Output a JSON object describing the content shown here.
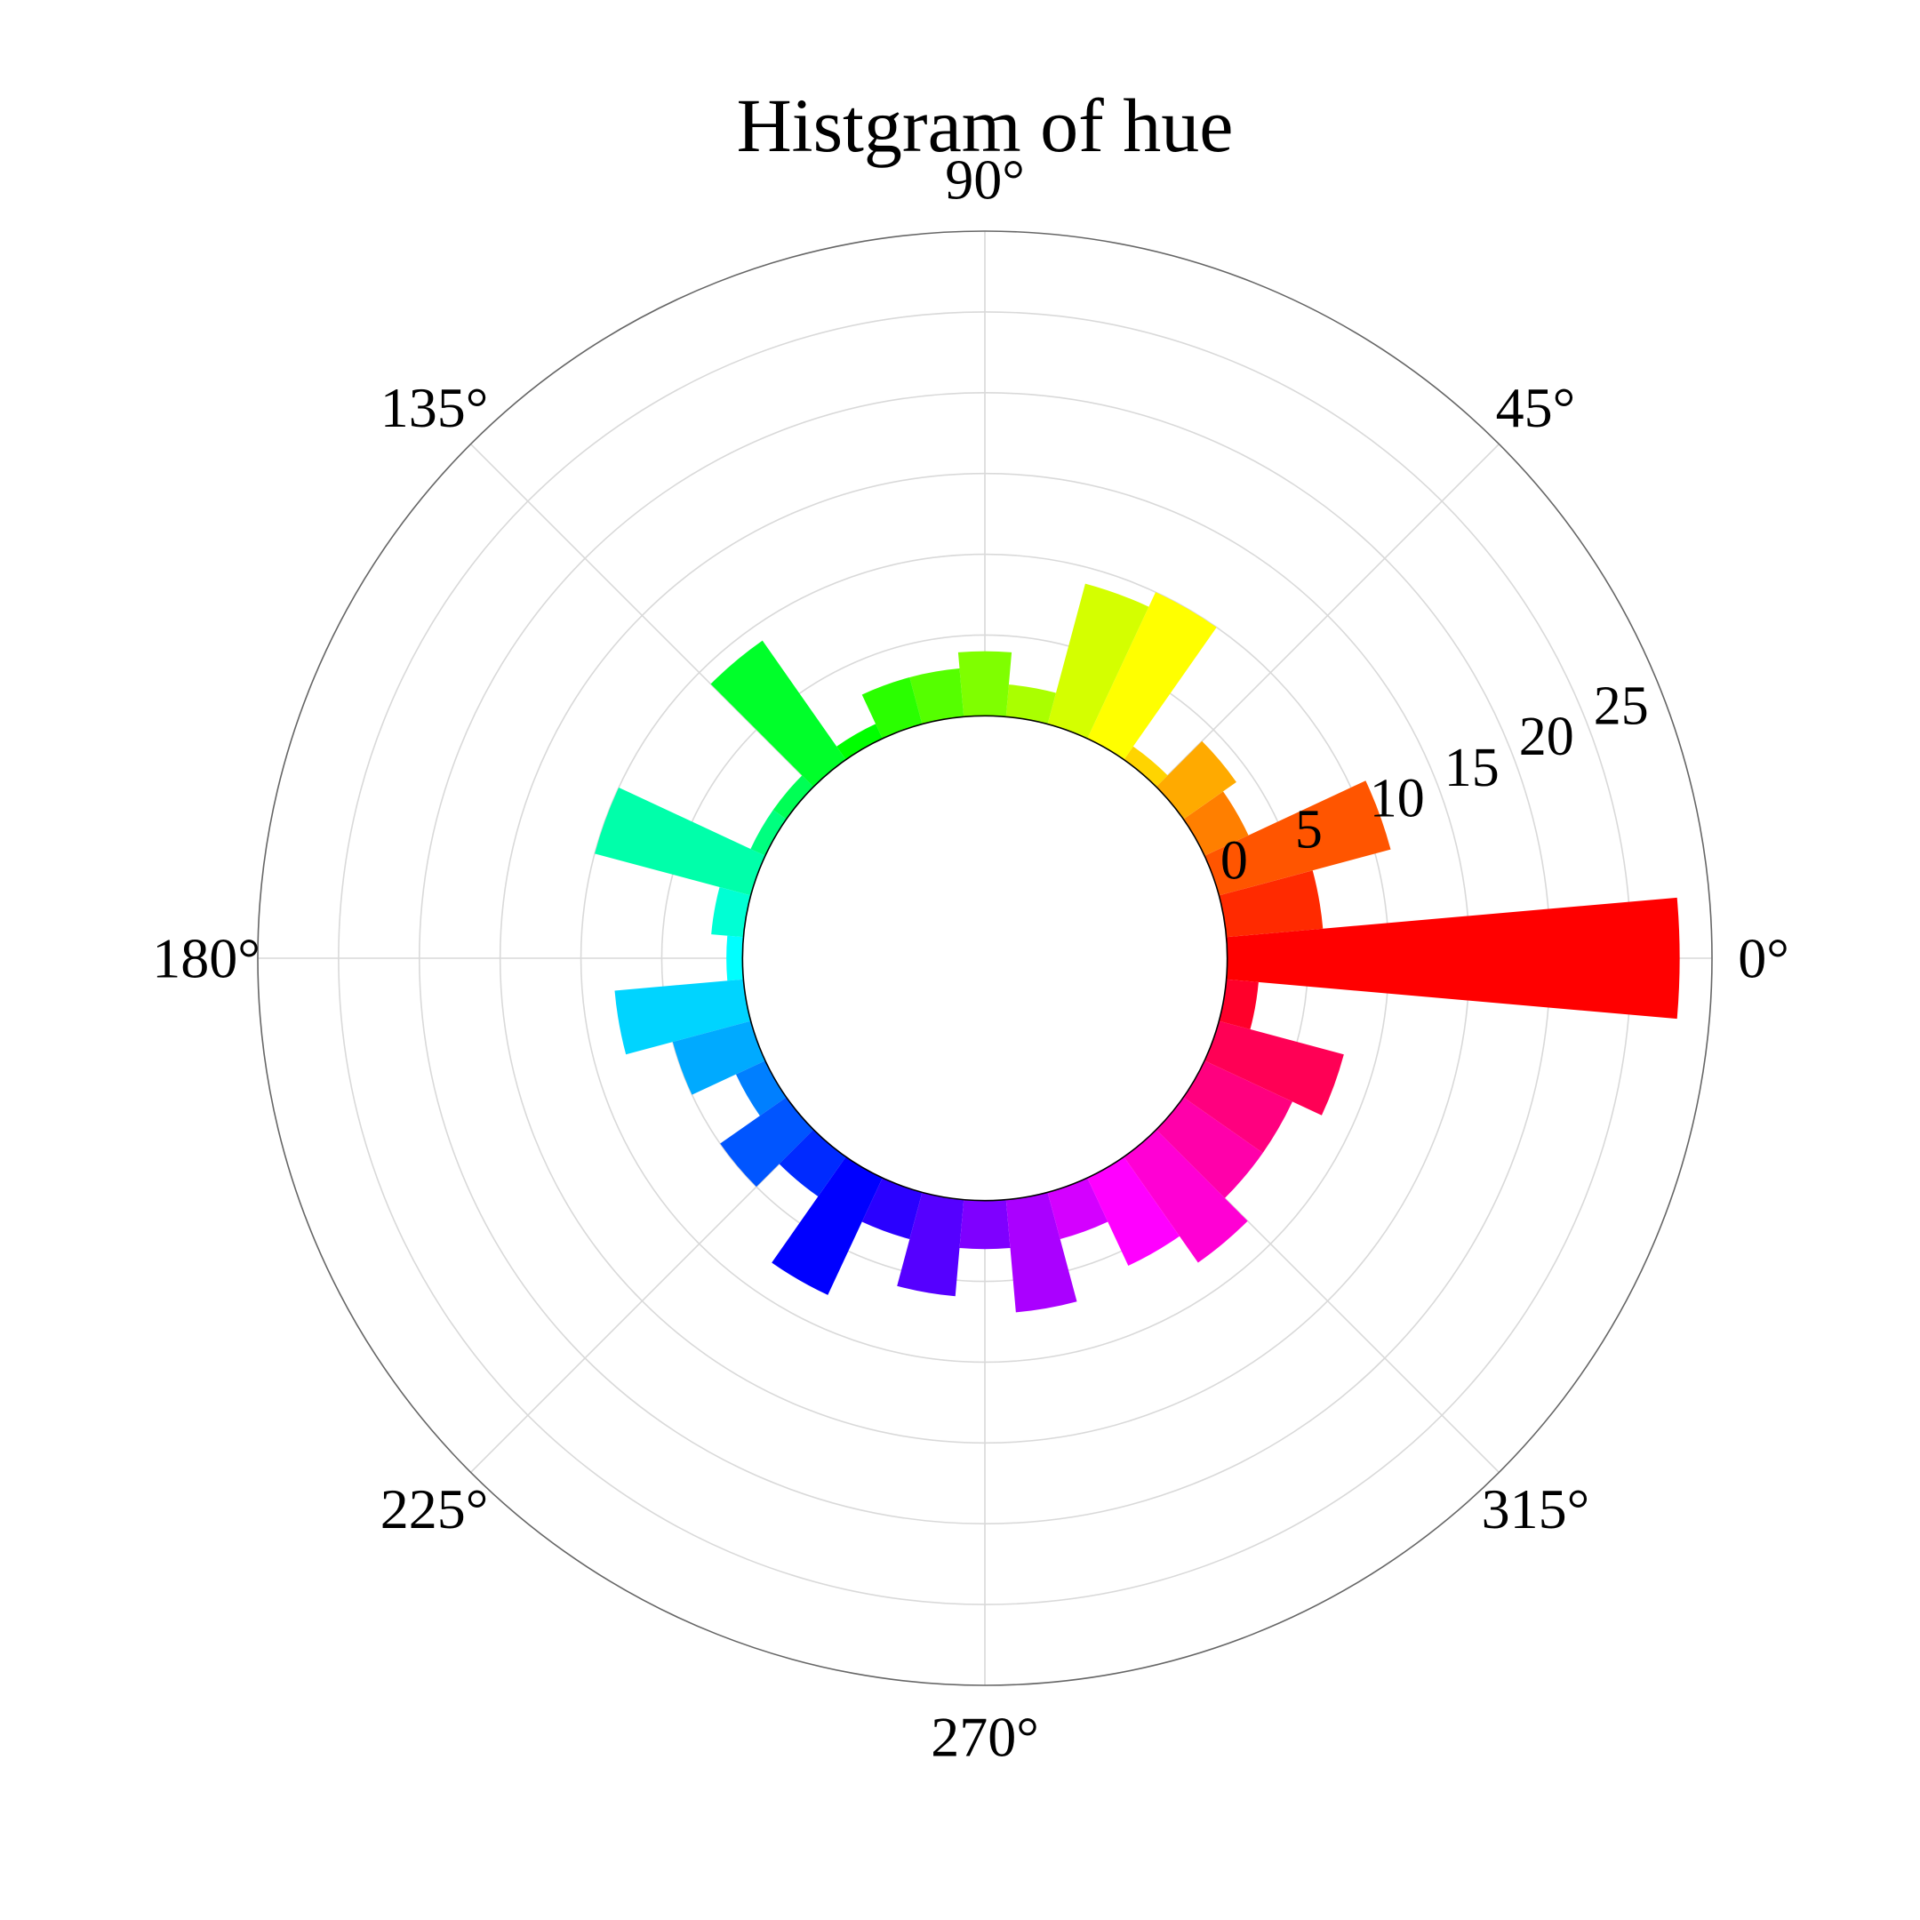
{
  "chart_data": {
    "type": "bar",
    "projection": "polar",
    "title": "Histgram of hue",
    "angle_ticks": [
      {
        "deg": 0,
        "label": "0°"
      },
      {
        "deg": 45,
        "label": "45°"
      },
      {
        "deg": 90,
        "label": "90°"
      },
      {
        "deg": 135,
        "label": "135°"
      },
      {
        "deg": 180,
        "label": "180°"
      },
      {
        "deg": 225,
        "label": "225°"
      },
      {
        "deg": 270,
        "label": "270°"
      },
      {
        "deg": 315,
        "label": "315°"
      }
    ],
    "radial_ticks": [
      {
        "value": 0,
        "label": "0"
      },
      {
        "value": 5,
        "label": "5"
      },
      {
        "value": 10,
        "label": "10"
      },
      {
        "value": 15,
        "label": "15"
      },
      {
        "value": 20,
        "label": "20"
      },
      {
        "value": 25,
        "label": "25"
      }
    ],
    "rlim": [
      -15,
      30
    ],
    "bin_width_deg": 10,
    "grid": true,
    "bins": [
      {
        "center_deg": 0,
        "value": 28,
        "color": "#ff0000"
      },
      {
        "center_deg": 10,
        "value": 6,
        "color": "#ff2a00"
      },
      {
        "center_deg": 20,
        "value": 11,
        "color": "#ff5500"
      },
      {
        "center_deg": 30,
        "value": 3,
        "color": "#ff7f00"
      },
      {
        "center_deg": 40,
        "value": 4,
        "color": "#ffaa00"
      },
      {
        "center_deg": 50,
        "value": 1,
        "color": "#ffd400"
      },
      {
        "center_deg": 60,
        "value": 10,
        "color": "#ffff00"
      },
      {
        "center_deg": 70,
        "value": 9,
        "color": "#d4ff00"
      },
      {
        "center_deg": 80,
        "value": 2,
        "color": "#aaff00"
      },
      {
        "center_deg": 90,
        "value": 4,
        "color": "#7fff00"
      },
      {
        "center_deg": 100,
        "value": 3,
        "color": "#55ff00"
      },
      {
        "center_deg": 110,
        "value": 3,
        "color": "#2aff00"
      },
      {
        "center_deg": 120,
        "value": 1,
        "color": "#00ff00"
      },
      {
        "center_deg": 130,
        "value": 9,
        "color": "#00ff2a"
      },
      {
        "center_deg": 140,
        "value": 1,
        "color": "#00ff55"
      },
      {
        "center_deg": 150,
        "value": 1,
        "color": "#00ff7f"
      },
      {
        "center_deg": 160,
        "value": 10,
        "color": "#00ffaa"
      },
      {
        "center_deg": 170,
        "value": 2,
        "color": "#00ffd4"
      },
      {
        "center_deg": 180,
        "value": 1,
        "color": "#00ffff"
      },
      {
        "center_deg": 190,
        "value": 8,
        "color": "#00d4ff"
      },
      {
        "center_deg": 200,
        "value": 5,
        "color": "#00aaff"
      },
      {
        "center_deg": 210,
        "value": 2,
        "color": "#007fff"
      },
      {
        "center_deg": 220,
        "value": 5,
        "color": "#0055ff"
      },
      {
        "center_deg": 230,
        "value": 3,
        "color": "#002aff"
      },
      {
        "center_deg": 240,
        "value": 8,
        "color": "#0000ff"
      },
      {
        "center_deg": 250,
        "value": 3,
        "color": "#2a00ff"
      },
      {
        "center_deg": 260,
        "value": 6,
        "color": "#5500ff"
      },
      {
        "center_deg": 270,
        "value": 3,
        "color": "#7f00ff"
      },
      {
        "center_deg": 280,
        "value": 7,
        "color": "#aa00ff"
      },
      {
        "center_deg": 290,
        "value": 3,
        "color": "#d400ff"
      },
      {
        "center_deg": 300,
        "value": 6,
        "color": "#ff00ff"
      },
      {
        "center_deg": 310,
        "value": 8,
        "color": "#ff00d4"
      },
      {
        "center_deg": 320,
        "value": 6,
        "color": "#ff00aa"
      },
      {
        "center_deg": 330,
        "value": 6,
        "color": "#ff007f"
      },
      {
        "center_deg": 340,
        "value": 8,
        "color": "#ff0055"
      },
      {
        "center_deg": 350,
        "value": 2,
        "color": "#ff002a"
      }
    ]
  }
}
